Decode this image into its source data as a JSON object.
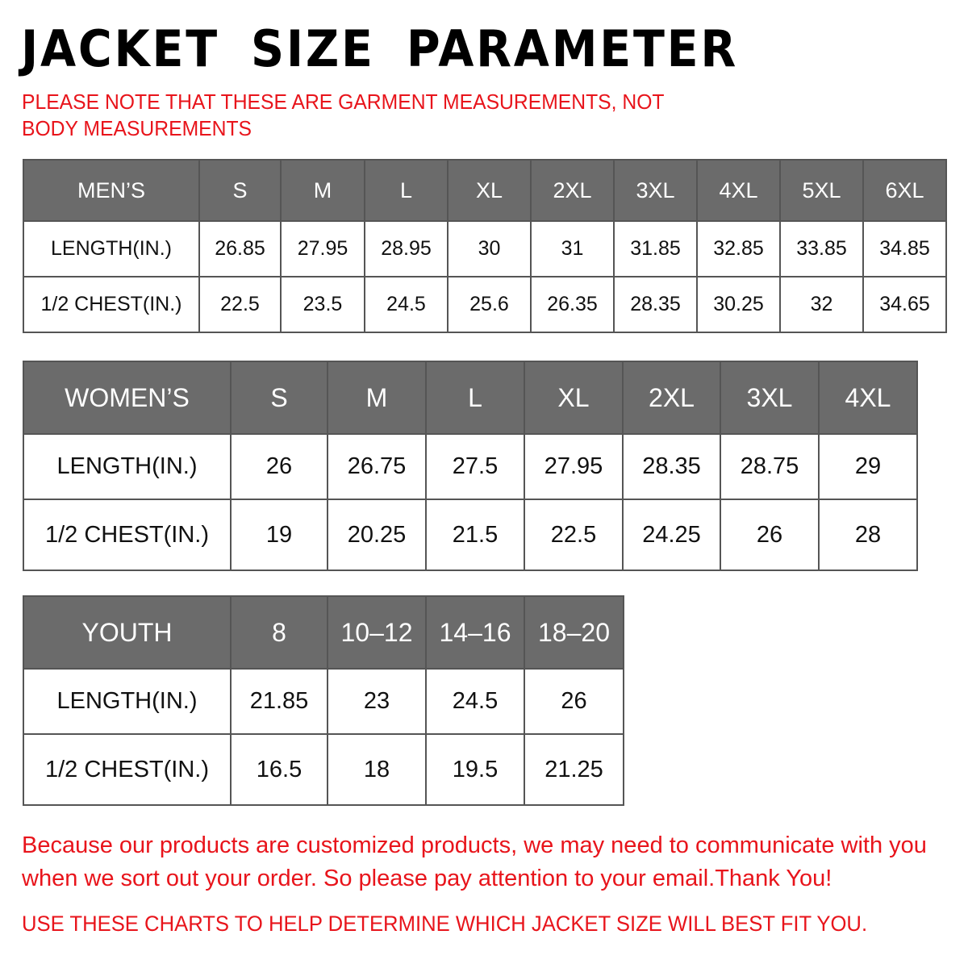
{
  "title": "JACKET SIZE PARAMETER",
  "note": "PLEASE NOTE THAT THESE ARE GARMENT MEASUREMENTS, NOT BODY MEASUREMENTS",
  "colors": {
    "header_bg": "#6b6b6b",
    "accent_red": "#e8141b"
  },
  "mens": {
    "header": [
      "MEN’S",
      "S",
      "M",
      "L",
      "XL",
      "2XL",
      "3XL",
      "4XL",
      "5XL",
      "6XL"
    ],
    "rows": [
      [
        "LENGTH(IN.)",
        "26.85",
        "27.95",
        "28.95",
        "30",
        "31",
        "31.85",
        "32.85",
        "33.85",
        "34.85"
      ],
      [
        "1/2 CHEST(IN.)",
        "22.5",
        "23.5",
        "24.5",
        "25.6",
        "26.35",
        "28.35",
        "30.25",
        "32",
        "34.65"
      ]
    ]
  },
  "womens": {
    "header": [
      "WOMEN’S",
      "S",
      "M",
      "L",
      "XL",
      "2XL",
      "3XL",
      "4XL"
    ],
    "rows": [
      [
        "LENGTH(IN.)",
        "26",
        "26.75",
        "27.5",
        "27.95",
        "28.35",
        "28.75",
        "29"
      ],
      [
        "1/2 CHEST(IN.)",
        "19",
        "20.25",
        "21.5",
        "22.5",
        "24.25",
        "26",
        "28"
      ]
    ]
  },
  "youth": {
    "header": [
      "YOUTH",
      "8",
      "10–12",
      "14–16",
      "18–20"
    ],
    "rows": [
      [
        "LENGTH(IN.)",
        "21.85",
        "23",
        "24.5",
        "26"
      ],
      [
        "1/2 CHEST(IN.)",
        "16.5",
        "18",
        "19.5",
        "21.25"
      ]
    ]
  },
  "message": "Because our products are customized products, we may need to communicate with you when we sort out your order. So please pay attention to your email.Thank You!",
  "footer": "USE THESE CHARTS TO HELP DETERMINE WHICH JACKET SIZE WILL BEST FIT YOU."
}
